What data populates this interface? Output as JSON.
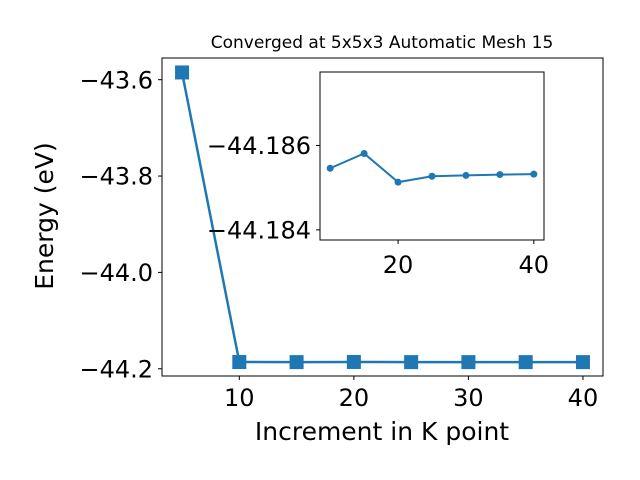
{
  "chart_data": [
    {
      "type": "line",
      "title": "Converged at 5x5x3 Automatic Mesh 15",
      "xlabel": "Increment in K point",
      "ylabel": "Energy (eV)",
      "x": [
        5,
        10,
        15,
        20,
        25,
        30,
        35,
        40
      ],
      "series": [
        {
          "values": [
            -43.585,
            -44.186,
            -44.1862,
            -44.1859,
            -44.1862,
            -44.1862,
            -44.1862,
            -44.1862
          ],
          "marker": "square"
        }
      ],
      "xlim": [
        3.25,
        41.75
      ],
      "ylim": [
        -44.215,
        -43.555
      ],
      "xticks": [
        10,
        20,
        30,
        40
      ],
      "xtick_labels": [
        "10",
        "20",
        "30",
        "40"
      ],
      "yticks": [
        -43.6,
        -43.8,
        -44.0,
        -44.2
      ],
      "ytick_labels": [
        "−43.6",
        "−43.8",
        "−44.0",
        "−44.2"
      ],
      "color": "#1f77b4",
      "grid": false
    },
    {
      "type": "line",
      "role": "inset",
      "x": [
        10,
        15,
        20,
        25,
        30,
        35,
        40
      ],
      "series": [
        {
          "values": [
            -44.18546,
            -44.18581,
            -44.18513,
            -44.18527,
            -44.18529,
            -44.18531,
            -44.18532
          ],
          "marker": "circle"
        }
      ],
      "xlim": [
        8.5,
        41.5
      ],
      "ylim": [
        -44.18376,
        -44.18774
      ],
      "xticks": [
        20,
        40
      ],
      "xtick_labels": [
        "20",
        "40"
      ],
      "yticks": [
        -44.186,
        -44.184
      ],
      "ytick_labels": [
        "−44.186",
        "−44.184"
      ],
      "color": "#1f77b4",
      "grid": false
    }
  ]
}
